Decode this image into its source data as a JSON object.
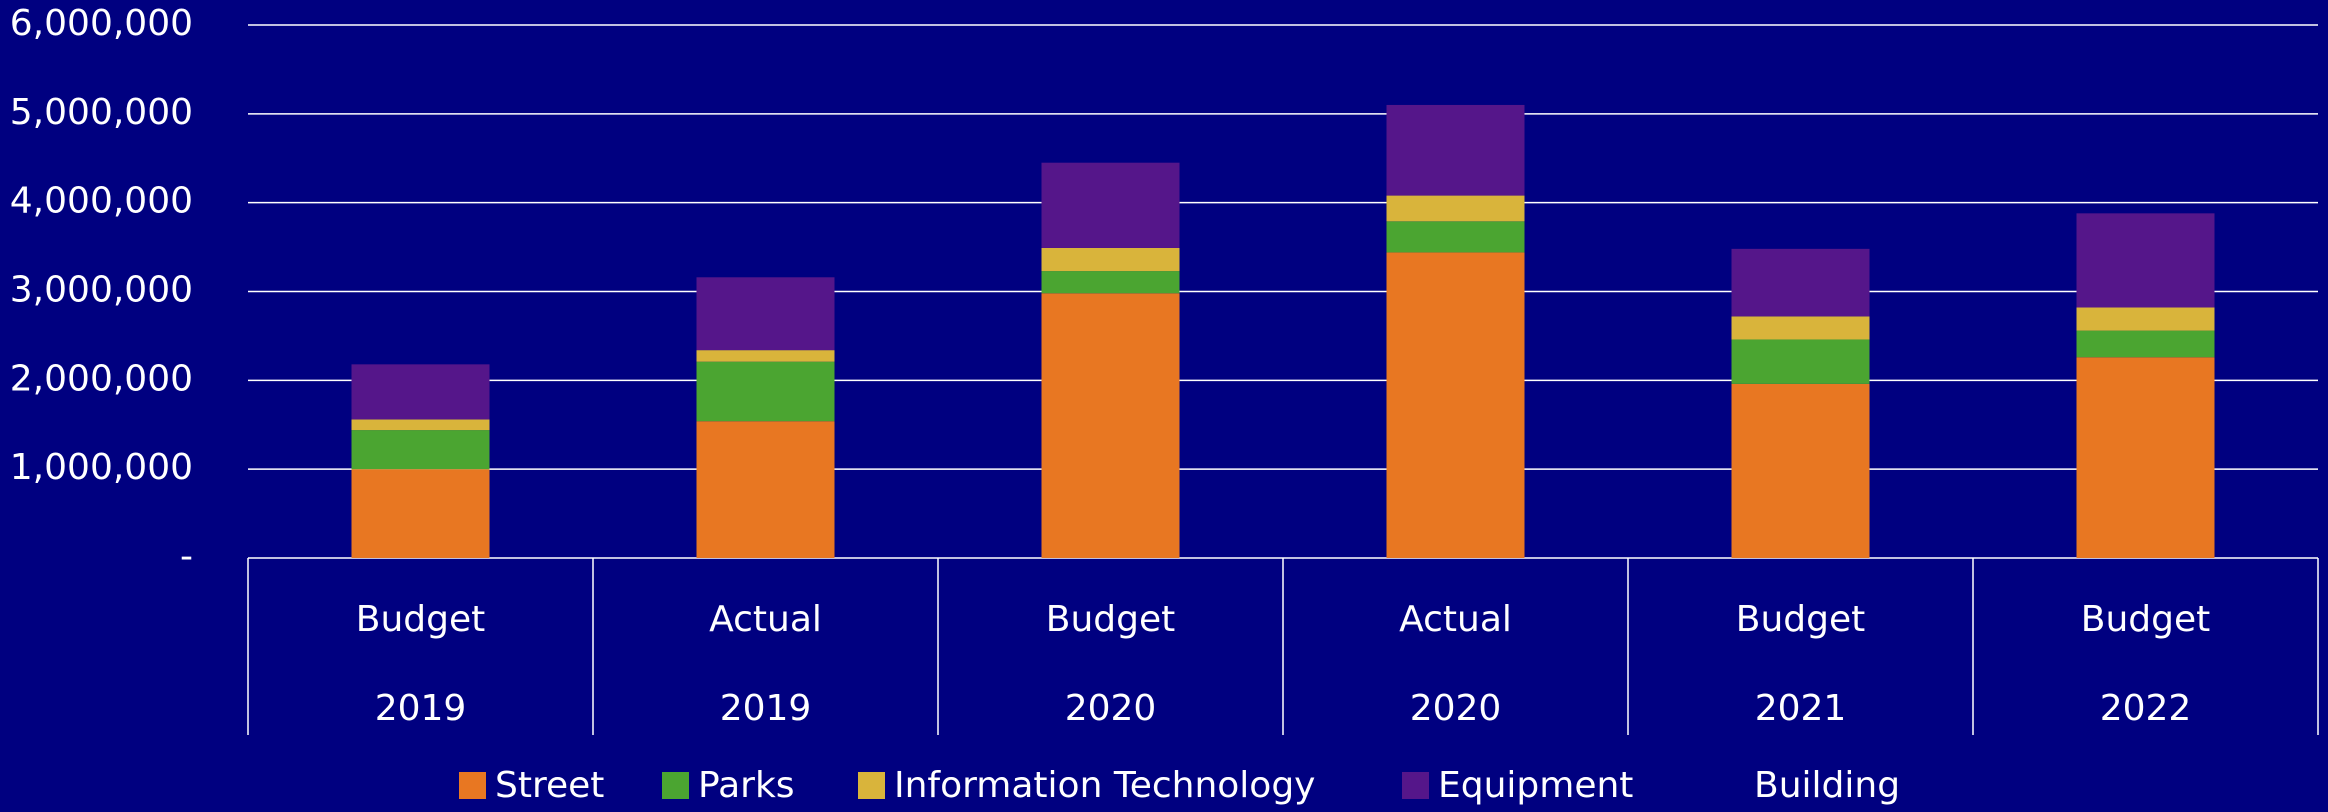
{
  "chart_data": {
    "type": "stacked_bar",
    "categories": [
      [
        "Budget",
        "2019"
      ],
      [
        "Actual",
        "2019"
      ],
      [
        "Budget",
        "2020"
      ],
      [
        "Actual",
        "2020"
      ],
      [
        "Budget",
        "2021"
      ],
      [
        "Budget",
        "2022"
      ]
    ],
    "series": [
      {
        "name": "Street",
        "color": "#e87722",
        "values": [
          1000000,
          1540000,
          2980000,
          3440000,
          1960000,
          2260000
        ]
      },
      {
        "name": "Parks",
        "color": "#4ba531",
        "values": [
          440000,
          670000,
          250000,
          350000,
          500000,
          300000
        ]
      },
      {
        "name": "Information Technology",
        "color": "#d9b43b",
        "values": [
          120000,
          130000,
          260000,
          290000,
          260000,
          260000
        ]
      },
      {
        "name": "Equipment",
        "color": "#55168a",
        "values": [
          620000,
          820000,
          960000,
          1020000,
          760000,
          1060000
        ]
      },
      {
        "name": "Building",
        "color": "#000080",
        "values": [
          0,
          0,
          0,
          0,
          0,
          0
        ]
      }
    ],
    "ylim": [
      0,
      6000000
    ],
    "yticks": [
      {
        "value": 0,
        "label": "-"
      },
      {
        "value": 1000000,
        "label": "1,000,000"
      },
      {
        "value": 2000000,
        "label": "2,000,000"
      },
      {
        "value": 3000000,
        "label": "3,000,000"
      },
      {
        "value": 4000000,
        "label": "4,000,000"
      },
      {
        "value": 5000000,
        "label": "5,000,000"
      },
      {
        "value": 6000000,
        "label": "6,000,000"
      }
    ],
    "grid": true,
    "legend": "bottom"
  }
}
